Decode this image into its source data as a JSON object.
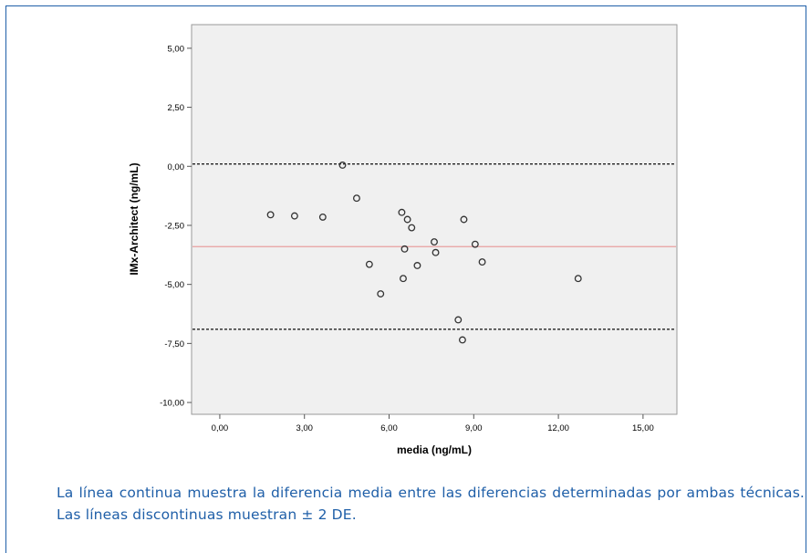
{
  "chart_data": {
    "type": "scatter",
    "title": "",
    "xlabel": "media (ng/mL)",
    "ylabel": "IMx-Architect (ng/mL)",
    "xlim": [
      -1.0,
      16.2
    ],
    "ylim": [
      -10.5,
      6.0
    ],
    "x_ticks": [
      0,
      3,
      6,
      9,
      12,
      15
    ],
    "x_tick_labels": [
      "0,00",
      "3,00",
      "6,00",
      "9,00",
      "12,00",
      "15,00"
    ],
    "y_ticks": [
      5,
      2.5,
      0,
      -2.5,
      -5,
      -7.5,
      -10
    ],
    "y_tick_labels": [
      "5,00",
      "2,50",
      "0,00",
      "-2,50",
      "-5,00",
      "-7,50",
      "-10,00"
    ],
    "grid": false,
    "points": [
      {
        "x": 1.8,
        "y": -2.05
      },
      {
        "x": 2.65,
        "y": -2.1
      },
      {
        "x": 3.65,
        "y": -2.15
      },
      {
        "x": 4.35,
        "y": 0.05
      },
      {
        "x": 4.85,
        "y": -1.35
      },
      {
        "x": 5.3,
        "y": -4.15
      },
      {
        "x": 5.7,
        "y": -5.4
      },
      {
        "x": 6.45,
        "y": -1.95
      },
      {
        "x": 6.5,
        "y": -4.75
      },
      {
        "x": 6.55,
        "y": -3.5
      },
      {
        "x": 6.65,
        "y": -2.25
      },
      {
        "x": 6.8,
        "y": -2.6
      },
      {
        "x": 7.0,
        "y": -4.2
      },
      {
        "x": 7.6,
        "y": -3.2
      },
      {
        "x": 7.65,
        "y": -3.65
      },
      {
        "x": 8.45,
        "y": -6.5
      },
      {
        "x": 8.6,
        "y": -7.35
      },
      {
        "x": 8.65,
        "y": -2.25
      },
      {
        "x": 9.05,
        "y": -3.3
      },
      {
        "x": 9.3,
        "y": -4.05
      },
      {
        "x": 12.7,
        "y": -4.75
      }
    ],
    "reference_lines": [
      {
        "kind": "solid",
        "y": -3.4,
        "color": "#e8a0a0"
      },
      {
        "kind": "dashed",
        "y": 0.1,
        "color": "#222222"
      },
      {
        "kind": "dashed",
        "y": -6.9,
        "color": "#222222"
      }
    ]
  },
  "caption": "La línea continua muestra la diferencia media entre las diferencias determinadas por ambas técnicas. Las líneas discontinuas muestran ± 2 DE.",
  "colors": {
    "plot_background": "#f0f0f0",
    "frame_border": "#1f5fa8",
    "caption_text": "#1f5fa8"
  }
}
